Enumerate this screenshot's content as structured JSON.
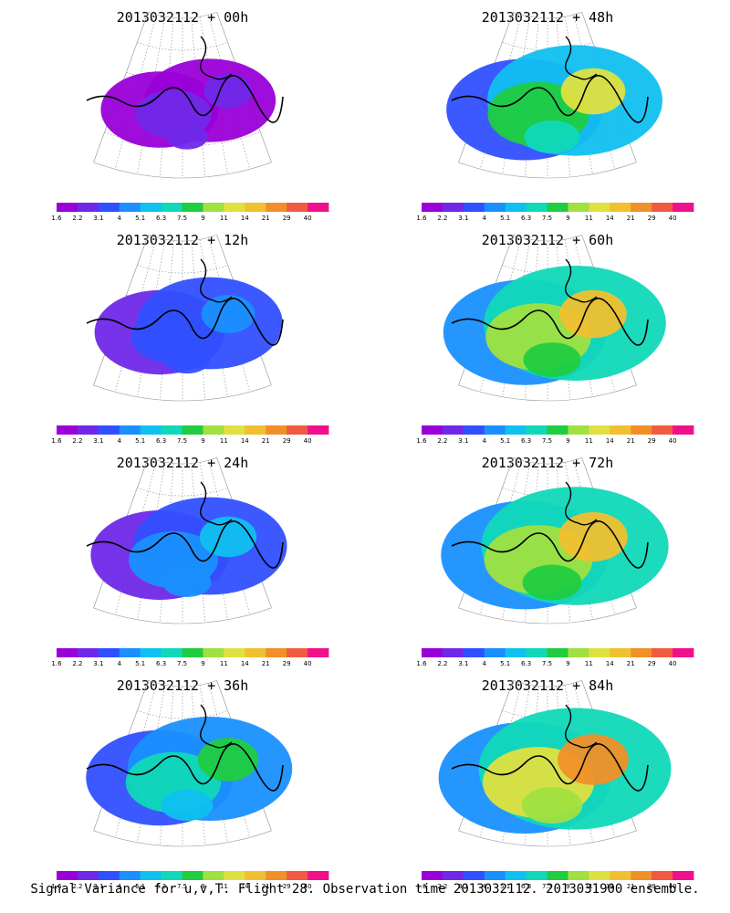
{
  "figure": {
    "caption": "Signal Variance for u,v,T. Flight 28. Observation time 2013032112. 2013031900 ensemble."
  },
  "colorbar": {
    "labels": [
      "1.6",
      "2.2",
      "3.1",
      "4",
      "5.1",
      "6.3",
      "7.5",
      "9",
      "11",
      "14",
      "21",
      "29",
      "40"
    ],
    "colors": [
      "#9a00d8",
      "#7028e8",
      "#3050ff",
      "#1a90ff",
      "#10c0f0",
      "#10d8b8",
      "#20cc40",
      "#a0e040",
      "#e0e040",
      "#f0c030",
      "#f09028",
      "#f05a40",
      "#f0108c"
    ]
  },
  "panels": [
    {
      "title": "2013032112 + 00h",
      "lead_hours": 0,
      "level": 0.12
    },
    {
      "title": "2013032112 + 48h",
      "lead_hours": 48,
      "level": 0.62
    },
    {
      "title": "2013032112 + 12h",
      "lead_hours": 12,
      "level": 0.28
    },
    {
      "title": "2013032112 + 60h",
      "lead_hours": 60,
      "level": 0.7
    },
    {
      "title": "2013032112 + 24h",
      "lead_hours": 24,
      "level": 0.38
    },
    {
      "title": "2013032112 + 72h",
      "lead_hours": 72,
      "level": 0.76
    },
    {
      "title": "2013032112 + 36h",
      "lead_hours": 36,
      "level": 0.5
    },
    {
      "title": "2013032112 + 84h",
      "lead_hours": 84,
      "level": 0.82
    }
  ]
}
